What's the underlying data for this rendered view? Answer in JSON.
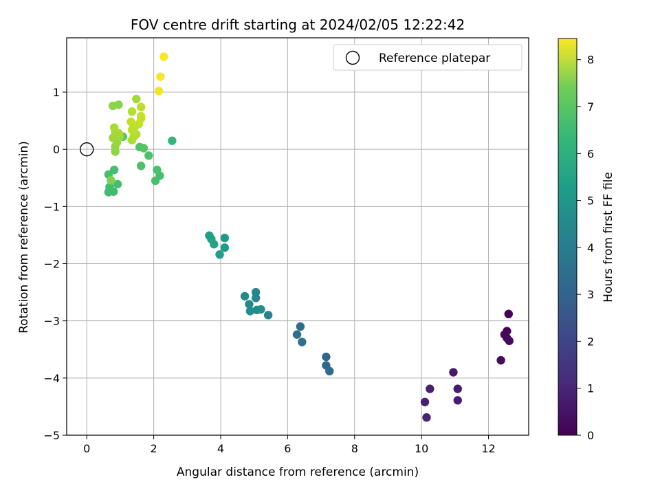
{
  "chart_data": {
    "type": "scatter",
    "title": "FOV centre drift starting at 2024/02/05 12:22:42",
    "xlabel": "Angular distance from reference (arcmin)",
    "ylabel": "Rotation from reference (arcmin)",
    "xlim": [
      -0.6,
      13.2
    ],
    "ylim": [
      -5.0,
      1.95
    ],
    "xticks": [
      0,
      2,
      4,
      6,
      8,
      10,
      12
    ],
    "yticks": [
      -5,
      -4,
      -3,
      -2,
      -1,
      0,
      1
    ],
    "grid": true,
    "colorbar": {
      "label": "Hours from first FF file",
      "range": [
        0,
        8.45
      ],
      "ticks": [
        0,
        1,
        2,
        3,
        4,
        5,
        6,
        7,
        8
      ],
      "colormap": "viridis"
    },
    "legend": {
      "position": "top-right",
      "entries": [
        {
          "label": "Reference platepar",
          "marker": "open-circle"
        }
      ]
    },
    "reference_point": {
      "x": 0,
      "y": 0
    },
    "points": [
      {
        "x": 12.6,
        "y": -2.88,
        "t": 0.05
      },
      {
        "x": 12.55,
        "y": -3.18,
        "t": 0.1
      },
      {
        "x": 12.48,
        "y": -3.24,
        "t": 0.15
      },
      {
        "x": 12.55,
        "y": -3.3,
        "t": 0.2
      },
      {
        "x": 12.62,
        "y": -3.35,
        "t": 0.25
      },
      {
        "x": 12.37,
        "y": -3.69,
        "t": 0.3
      },
      {
        "x": 10.95,
        "y": -3.9,
        "t": 0.6
      },
      {
        "x": 11.08,
        "y": -4.19,
        "t": 0.65
      },
      {
        "x": 11.08,
        "y": -4.39,
        "t": 0.7
      },
      {
        "x": 10.25,
        "y": -4.19,
        "t": 0.75
      },
      {
        "x": 10.1,
        "y": -4.42,
        "t": 0.8
      },
      {
        "x": 10.15,
        "y": -4.69,
        "t": 0.85
      },
      {
        "x": 7.15,
        "y": -3.63,
        "t": 2.8
      },
      {
        "x": 7.15,
        "y": -3.78,
        "t": 2.85
      },
      {
        "x": 7.25,
        "y": -3.88,
        "t": 2.9
      },
      {
        "x": 6.38,
        "y": -3.1,
        "t": 3.0
      },
      {
        "x": 6.28,
        "y": -3.24,
        "t": 3.05
      },
      {
        "x": 6.43,
        "y": -3.37,
        "t": 3.1
      },
      {
        "x": 5.42,
        "y": -2.9,
        "t": 3.8
      },
      {
        "x": 5.05,
        "y": -2.5,
        "t": 3.9
      },
      {
        "x": 5.05,
        "y": -2.6,
        "t": 3.95
      },
      {
        "x": 4.72,
        "y": -2.57,
        "t": 4.0
      },
      {
        "x": 4.85,
        "y": -2.71,
        "t": 4.05
      },
      {
        "x": 4.88,
        "y": -2.83,
        "t": 4.1
      },
      {
        "x": 5.08,
        "y": -2.81,
        "t": 4.15
      },
      {
        "x": 5.2,
        "y": -2.8,
        "t": 4.2
      },
      {
        "x": 4.12,
        "y": -1.55,
        "t": 4.6
      },
      {
        "x": 4.12,
        "y": -1.72,
        "t": 4.65
      },
      {
        "x": 3.97,
        "y": -1.84,
        "t": 4.7
      },
      {
        "x": 3.66,
        "y": -1.51,
        "t": 4.75
      },
      {
        "x": 3.72,
        "y": -1.57,
        "t": 4.8
      },
      {
        "x": 3.8,
        "y": -1.66,
        "t": 4.85
      },
      {
        "x": 2.55,
        "y": 0.15,
        "t": 5.6
      },
      {
        "x": 0.65,
        "y": -0.75,
        "t": 5.8
      },
      {
        "x": 0.8,
        "y": -0.74,
        "t": 5.82
      },
      {
        "x": 0.68,
        "y": -0.66,
        "t": 5.85
      },
      {
        "x": 0.92,
        "y": -0.61,
        "t": 5.88
      },
      {
        "x": 0.65,
        "y": -0.44,
        "t": 5.9
      },
      {
        "x": 0.82,
        "y": -0.36,
        "t": 5.93
      },
      {
        "x": 2.05,
        "y": -0.55,
        "t": 5.95
      },
      {
        "x": 2.18,
        "y": -0.46,
        "t": 5.97
      },
      {
        "x": 2.1,
        "y": -0.36,
        "t": 6.0
      },
      {
        "x": 1.62,
        "y": -0.29,
        "t": 6.02
      },
      {
        "x": 1.85,
        "y": -0.11,
        "t": 6.05
      },
      {
        "x": 1.58,
        "y": 0.04,
        "t": 6.1
      },
      {
        "x": 1.7,
        "y": 0.02,
        "t": 6.15
      },
      {
        "x": 1.08,
        "y": 0.22,
        "t": 6.2
      },
      {
        "x": 0.72,
        "y": -0.54,
        "t": 6.8
      },
      {
        "x": 0.78,
        "y": 0.76,
        "t": 7.0
      },
      {
        "x": 0.95,
        "y": 0.78,
        "t": 6.9
      },
      {
        "x": 0.85,
        "y": -0.04,
        "t": 7.0
      },
      {
        "x": 0.85,
        "y": 0.05,
        "t": 7.05
      },
      {
        "x": 0.9,
        "y": 0.12,
        "t": 7.1
      },
      {
        "x": 0.78,
        "y": 0.2,
        "t": 7.15
      },
      {
        "x": 0.98,
        "y": 0.22,
        "t": 7.2
      },
      {
        "x": 0.85,
        "y": 0.3,
        "t": 7.25
      },
      {
        "x": 0.95,
        "y": 0.28,
        "t": 7.3
      },
      {
        "x": 0.82,
        "y": 0.38,
        "t": 7.35
      },
      {
        "x": 1.35,
        "y": 0.16,
        "t": 7.4
      },
      {
        "x": 1.4,
        "y": 0.22,
        "t": 7.45
      },
      {
        "x": 1.48,
        "y": 0.26,
        "t": 7.5
      },
      {
        "x": 1.35,
        "y": 0.34,
        "t": 7.55
      },
      {
        "x": 1.42,
        "y": 0.38,
        "t": 7.6
      },
      {
        "x": 1.32,
        "y": 0.48,
        "t": 7.65
      },
      {
        "x": 1.55,
        "y": 0.44,
        "t": 7.7
      },
      {
        "x": 1.62,
        "y": 0.54,
        "t": 7.72
      },
      {
        "x": 1.62,
        "y": 0.58,
        "t": 7.75
      },
      {
        "x": 1.35,
        "y": 0.66,
        "t": 7.5
      },
      {
        "x": 1.62,
        "y": 0.74,
        "t": 7.6
      },
      {
        "x": 1.48,
        "y": 0.88,
        "t": 7.3
      },
      {
        "x": 2.15,
        "y": 1.02,
        "t": 8.3
      },
      {
        "x": 2.2,
        "y": 1.27,
        "t": 8.35
      },
      {
        "x": 2.3,
        "y": 1.62,
        "t": 8.45
      }
    ]
  }
}
